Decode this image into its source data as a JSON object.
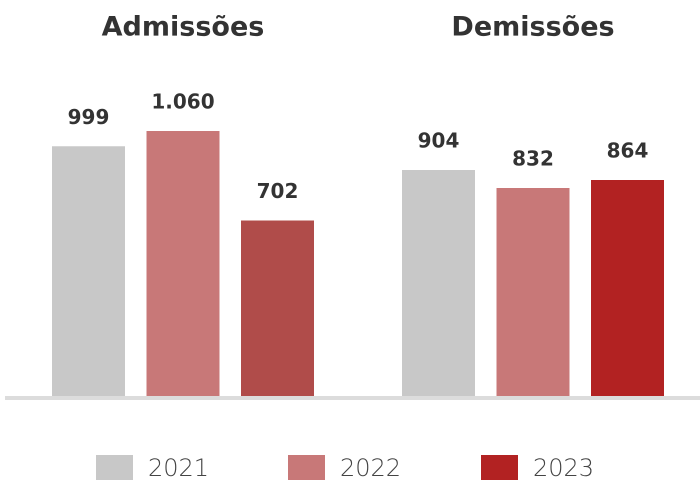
{
  "chart_data": {
    "type": "bar",
    "categories": [
      "Admissões",
      "Demissões"
    ],
    "series": [
      {
        "name": "2021",
        "color": "#c8c8c8",
        "values": [
          999,
          904
        ],
        "value_labels": [
          "999",
          "904"
        ]
      },
      {
        "name": "2022",
        "color": "#c87878",
        "values": [
          1060,
          832
        ],
        "value_labels": [
          "1.060",
          "832"
        ]
      },
      {
        "name": "2023",
        "color": "#b22222",
        "colors": [
          "#b04c4a",
          "#b22222"
        ],
        "values": [
          702,
          864
        ],
        "value_labels": [
          "702",
          "864"
        ]
      }
    ]
  }
}
